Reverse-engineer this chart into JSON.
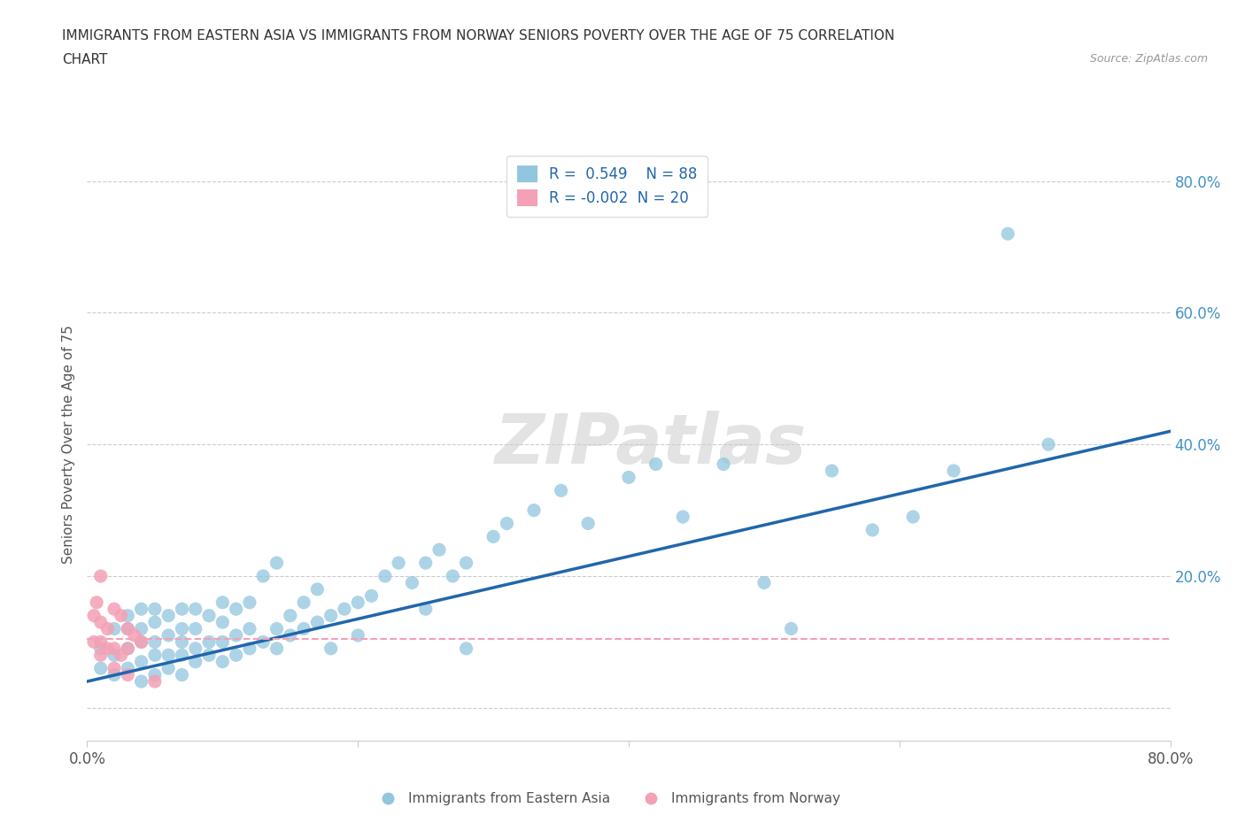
{
  "title_line1": "IMMIGRANTS FROM EASTERN ASIA VS IMMIGRANTS FROM NORWAY SENIORS POVERTY OVER THE AGE OF 75 CORRELATION",
  "title_line2": "CHART",
  "source": "Source: ZipAtlas.com",
  "ylabel": "Seniors Poverty Over the Age of 75",
  "r_eastern_asia": 0.549,
  "n_eastern_asia": 88,
  "r_norway": -0.002,
  "n_norway": 20,
  "color_eastern_asia": "#92c5de",
  "color_norway": "#f4a0b5",
  "color_line_eastern_asia": "#2166ac",
  "color_line_norway": "#f4a0b5",
  "xlim": [
    0.0,
    0.8
  ],
  "ylim": [
    -0.05,
    0.85
  ],
  "yticks": [
    0.0,
    0.2,
    0.4,
    0.6,
    0.8
  ],
  "watermark": "ZIPatlas",
  "ea_line_x0": 0.0,
  "ea_line_y0": 0.04,
  "ea_line_x1": 0.8,
  "ea_line_y1": 0.42,
  "no_line_x0": 0.0,
  "no_line_y0": 0.105,
  "no_line_x1": 0.8,
  "no_line_y1": 0.105,
  "eastern_asia_x": [
    0.01,
    0.01,
    0.02,
    0.02,
    0.02,
    0.03,
    0.03,
    0.03,
    0.03,
    0.04,
    0.04,
    0.04,
    0.04,
    0.04,
    0.05,
    0.05,
    0.05,
    0.05,
    0.05,
    0.06,
    0.06,
    0.06,
    0.06,
    0.07,
    0.07,
    0.07,
    0.07,
    0.07,
    0.08,
    0.08,
    0.08,
    0.08,
    0.09,
    0.09,
    0.09,
    0.1,
    0.1,
    0.1,
    0.1,
    0.11,
    0.11,
    0.11,
    0.12,
    0.12,
    0.12,
    0.13,
    0.13,
    0.14,
    0.14,
    0.14,
    0.15,
    0.15,
    0.16,
    0.16,
    0.17,
    0.17,
    0.18,
    0.18,
    0.19,
    0.2,
    0.2,
    0.21,
    0.22,
    0.23,
    0.24,
    0.25,
    0.25,
    0.26,
    0.27,
    0.28,
    0.28,
    0.3,
    0.31,
    0.33,
    0.35,
    0.37,
    0.4,
    0.42,
    0.44,
    0.47,
    0.5,
    0.52,
    0.55,
    0.58,
    0.61,
    0.64,
    0.68,
    0.71
  ],
  "eastern_asia_y": [
    0.06,
    0.09,
    0.05,
    0.08,
    0.12,
    0.06,
    0.09,
    0.12,
    0.14,
    0.04,
    0.07,
    0.1,
    0.12,
    0.15,
    0.05,
    0.08,
    0.1,
    0.13,
    0.15,
    0.06,
    0.08,
    0.11,
    0.14,
    0.05,
    0.08,
    0.1,
    0.12,
    0.15,
    0.07,
    0.09,
    0.12,
    0.15,
    0.08,
    0.1,
    0.14,
    0.07,
    0.1,
    0.13,
    0.16,
    0.08,
    0.11,
    0.15,
    0.09,
    0.12,
    0.16,
    0.1,
    0.2,
    0.09,
    0.12,
    0.22,
    0.11,
    0.14,
    0.12,
    0.16,
    0.13,
    0.18,
    0.14,
    0.09,
    0.15,
    0.16,
    0.11,
    0.17,
    0.2,
    0.22,
    0.19,
    0.22,
    0.15,
    0.24,
    0.2,
    0.22,
    0.09,
    0.26,
    0.28,
    0.3,
    0.33,
    0.28,
    0.35,
    0.37,
    0.29,
    0.37,
    0.19,
    0.12,
    0.36,
    0.27,
    0.29,
    0.36,
    0.72,
    0.4
  ],
  "norway_x": [
    0.005,
    0.005,
    0.007,
    0.01,
    0.01,
    0.01,
    0.01,
    0.015,
    0.015,
    0.02,
    0.02,
    0.02,
    0.025,
    0.025,
    0.03,
    0.03,
    0.03,
    0.035,
    0.04,
    0.05
  ],
  "norway_y": [
    0.1,
    0.14,
    0.16,
    0.08,
    0.1,
    0.13,
    0.2,
    0.09,
    0.12,
    0.06,
    0.09,
    0.15,
    0.08,
    0.14,
    0.05,
    0.09,
    0.12,
    0.11,
    0.1,
    0.04
  ]
}
